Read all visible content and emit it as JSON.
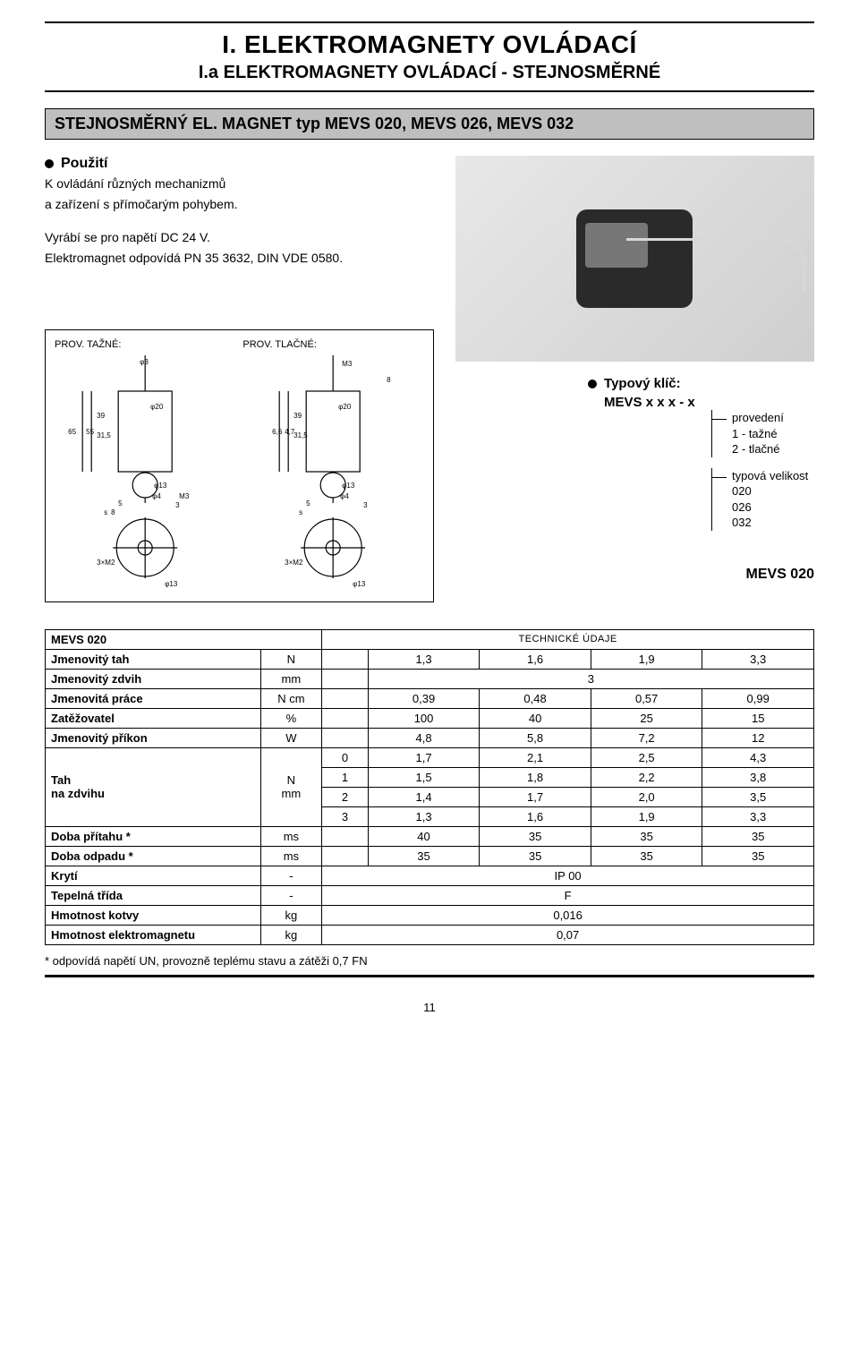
{
  "header": {
    "title": "I. ELEKTROMAGNETY  OVLÁDACÍ",
    "subtitle": "I.a ELEKTROMAGNETY  OVLÁDACÍ - STEJNOSMĚRNÉ"
  },
  "band": "STEJNOSMĚRNÝ EL.  MAGNET  typ MEVS 020, MEVS 026, MEVS 032",
  "usage": {
    "heading": "Použití",
    "line1": "K ovládání různých mechanizmů",
    "line2": "a zařízení s přímočarým pohybem.",
    "line3": "Vyrábí se pro napětí DC 24 V.",
    "line4": "Elektromagnet odpovídá PN 35 3632, DIN VDE 0580."
  },
  "diagram": {
    "left_label": "PROV. TAŽNÉ:",
    "right_label": "PROV. TLAČNÉ:",
    "colors": {
      "stroke": "#000000",
      "fill_body": "#ffffff"
    }
  },
  "type_key": {
    "heading": "Typový klíč:",
    "code": "MEVS x x x - x",
    "group1_title": "provedení",
    "group1_opt1": "1 - tažné",
    "group1_opt2": "2 - tlačné",
    "group2_title": "typová velikost",
    "group2_opt1": "020",
    "group2_opt2": "026",
    "group2_opt3": "032"
  },
  "model_label": "MEVS 020",
  "table": {
    "model_cell": "MEVS 020",
    "tech_header": "TECHNICKÉ ÚDAJE",
    "col_widths_pct": [
      28,
      8,
      6,
      14.5,
      14.5,
      14.5,
      14.5
    ],
    "rows": [
      {
        "label": "Jmenovitý tah",
        "unit": "N",
        "idx": "",
        "vals": [
          "1,3",
          "1,6",
          "1,9",
          "3,3"
        ]
      },
      {
        "label": "Jmenovitý zdvih",
        "unit": "mm",
        "idx": "",
        "vals_span": "3"
      },
      {
        "label": "Jmenovitá práce",
        "unit": "N cm",
        "idx": "",
        "vals": [
          "0,39",
          "0,48",
          "0,57",
          "0,99"
        ]
      },
      {
        "label": "Zatěžovatel",
        "unit": "%",
        "idx": "",
        "vals": [
          "100",
          "40",
          "25",
          "15"
        ]
      },
      {
        "label": "Jmenovitý příkon",
        "unit": "W",
        "idx": "",
        "vals": [
          "4,8",
          "5,8",
          "7,2",
          "12"
        ]
      }
    ],
    "tah_block": {
      "label": "Tah\nna zdvihu",
      "unit": "N\nmm",
      "rows": [
        {
          "idx": "0",
          "vals": [
            "1,7",
            "2,1",
            "2,5",
            "4,3"
          ]
        },
        {
          "idx": "1",
          "vals": [
            "1,5",
            "1,8",
            "2,2",
            "3,8"
          ]
        },
        {
          "idx": "2",
          "vals": [
            "1,4",
            "1,7",
            "2,0",
            "3,5"
          ]
        },
        {
          "idx": "3",
          "vals": [
            "1,3",
            "1,6",
            "1,9",
            "3,3"
          ]
        }
      ]
    },
    "rows2": [
      {
        "label": "Doba přítahu *",
        "unit": "ms",
        "vals": [
          "40",
          "35",
          "35",
          "35"
        ]
      },
      {
        "label": "Doba odpadu *",
        "unit": "ms",
        "vals": [
          "35",
          "35",
          "35",
          "35"
        ]
      },
      {
        "label": "Krytí",
        "unit": "-",
        "vals_span": "IP 00"
      },
      {
        "label": "Tepelná třída",
        "unit": "-",
        "vals_span": "F"
      },
      {
        "label": "Hmotnost kotvy",
        "unit": "kg",
        "vals_span": "0,016"
      },
      {
        "label": "Hmotnost elektromagnetu",
        "unit": "kg",
        "vals_span": "0,07"
      }
    ]
  },
  "footnote": "* odpovídá napětí UN, provozně teplému stavu a zátěži 0,7 FN",
  "page_number": "11"
}
